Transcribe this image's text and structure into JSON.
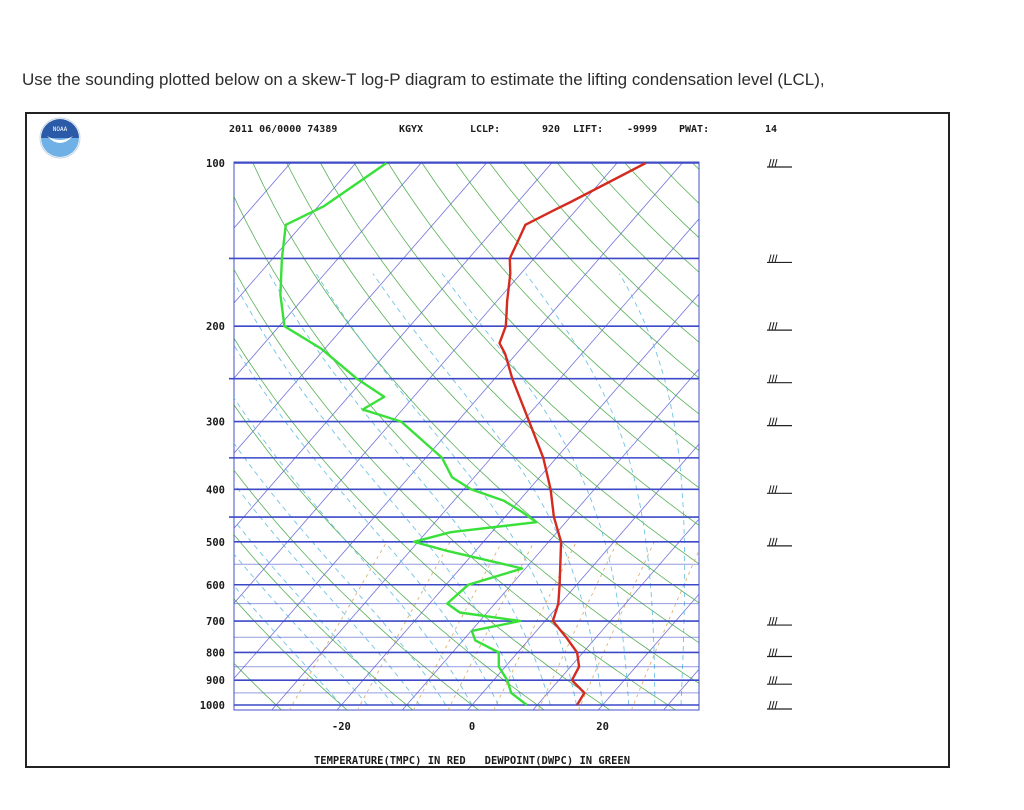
{
  "question": "Use the sounding plotted below on a skew-T log-P diagram to estimate the lifting condensation level (LCL),",
  "header": {
    "station_info": "2011 06/0000 74389",
    "station_id": "KGYX",
    "lclp_label": "LCLP:",
    "lclp_value": "920",
    "lift_label": "LIFT:",
    "lift_value": "-9999",
    "pwat_label": "PWAT:",
    "pwat_value": "14"
  },
  "logo": {
    "icon": "noaa-logo-icon",
    "text": "NOAA"
  },
  "footer_caption": "TEMPERATURE(TMPC) IN RED   DEWPOINT(DWPC) IN GREEN",
  "colors": {
    "temperature": "#d42a1f",
    "dewpoint": "#39e039",
    "isobar": "#3c49c6",
    "isotherm": "#5b5bd6",
    "dry_adiabat": "#2e9d2e",
    "moist_adiabat": "#58b8e0",
    "mixing_ratio": "#d9a860"
  },
  "chart_data": {
    "type": "line",
    "subtype": "skew-T log-P",
    "y_scale": "log",
    "y_axis_units": "hPa",
    "x_axis_units": "C",
    "y_ticks": [
      100,
      200,
      300,
      400,
      500,
      600,
      700,
      800,
      900,
      1000
    ],
    "y_tick_labels": [
      "100",
      "200",
      "300",
      "400",
      "500",
      "600",
      "700",
      "800",
      "900",
      "1000"
    ],
    "x_ticks": [
      -20,
      0,
      20
    ],
    "x_tick_labels": [
      "-20",
      "0",
      "20"
    ],
    "ylim": [
      1000,
      100
    ],
    "xlim_at_1000hPa": [
      -37,
      34
    ],
    "series": [
      {
        "name": "TEMPERATURE(TMPC)",
        "points": [
          {
            "p": 100,
            "t": -45.6
          },
          {
            "p": 118,
            "t": -51.9
          },
          {
            "p": 122,
            "t": -53.3
          },
          {
            "p": 130,
            "t": -55.8
          },
          {
            "p": 140,
            "t": -54.7
          },
          {
            "p": 150,
            "t": -53.7
          },
          {
            "p": 160,
            "t": -51.6
          },
          {
            "p": 180,
            "t": -48.4
          },
          {
            "p": 190,
            "t": -46.8
          },
          {
            "p": 200,
            "t": -45.3
          },
          {
            "p": 215,
            "t": -44.0
          },
          {
            "p": 225,
            "t": -41.7
          },
          {
            "p": 250,
            "t": -37.3
          },
          {
            "p": 300,
            "t": -29.0
          },
          {
            "p": 350,
            "t": -22.0
          },
          {
            "p": 400,
            "t": -16.7
          },
          {
            "p": 450,
            "t": -12.5
          },
          {
            "p": 500,
            "t": -8.1
          },
          {
            "p": 600,
            "t": -2.6
          },
          {
            "p": 650,
            "t": -0.3
          },
          {
            "p": 700,
            "t": 1.2
          },
          {
            "p": 750,
            "t": 5.4
          },
          {
            "p": 800,
            "t": 9.1
          },
          {
            "p": 850,
            "t": 11.3
          },
          {
            "p": 900,
            "t": 12.0
          },
          {
            "p": 950,
            "t": 15.6
          },
          {
            "p": 1000,
            "t": 16.1
          }
        ]
      },
      {
        "name": "DEWPOINT(DWPC)",
        "points": [
          {
            "p": 100,
            "t": -85.3
          },
          {
            "p": 120,
            "t": -89.1
          },
          {
            "p": 130,
            "t": -92.5
          },
          {
            "p": 150,
            "t": -88.6
          },
          {
            "p": 175,
            "t": -84.0
          },
          {
            "p": 200,
            "t": -79.2
          },
          {
            "p": 220,
            "t": -70.6
          },
          {
            "p": 250,
            "t": -61.1
          },
          {
            "p": 270,
            "t": -54.5
          },
          {
            "p": 285,
            "t": -56.1
          },
          {
            "p": 300,
            "t": -48.6
          },
          {
            "p": 350,
            "t": -37.5
          },
          {
            "p": 380,
            "t": -33.4
          },
          {
            "p": 400,
            "t": -28.9
          },
          {
            "p": 420,
            "t": -22.3
          },
          {
            "p": 440,
            "t": -18.1
          },
          {
            "p": 460,
            "t": -14.5
          },
          {
            "p": 480,
            "t": -26.3
          },
          {
            "p": 500,
            "t": -30.6
          },
          {
            "p": 520,
            "t": -24.2
          },
          {
            "p": 560,
            "t": -10.5
          },
          {
            "p": 600,
            "t": -16.6
          },
          {
            "p": 650,
            "t": -17.3
          },
          {
            "p": 675,
            "t": -14.2
          },
          {
            "p": 700,
            "t": -3.8
          },
          {
            "p": 730,
            "t": -9.9
          },
          {
            "p": 760,
            "t": -8.1
          },
          {
            "p": 800,
            "t": -2.9
          },
          {
            "p": 850,
            "t": -1.0
          },
          {
            "p": 900,
            "t": 2.1
          },
          {
            "p": 950,
            "t": 4.4
          },
          {
            "p": 1000,
            "t": 8.4
          }
        ]
      }
    ],
    "wind_barb_levels_hPa": [
      100,
      150,
      200,
      250,
      300,
      400,
      500,
      700,
      800,
      900,
      1000
    ]
  }
}
